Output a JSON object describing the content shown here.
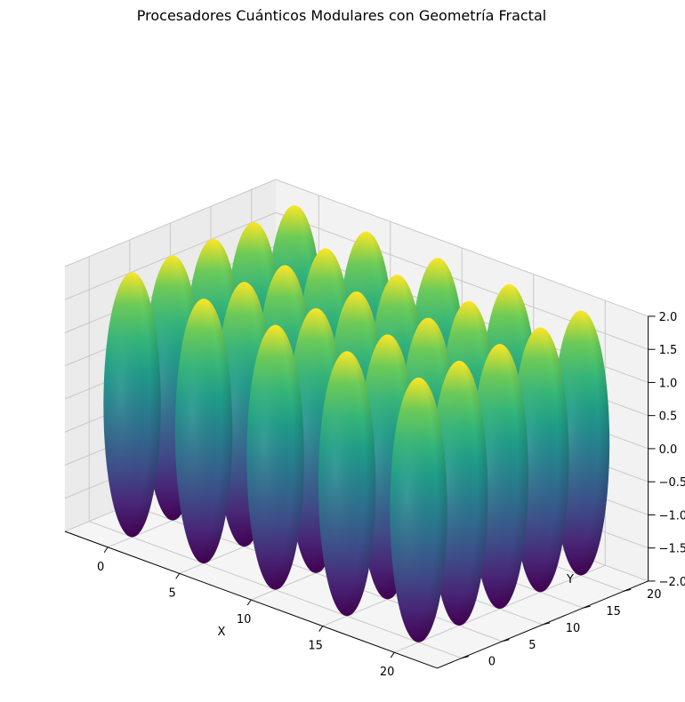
{
  "chart_data": {
    "type": "surface3d",
    "title": "Procesadores Cuánticos Modulares con Geometría Fractal",
    "xlabel": "X",
    "ylabel": "Y",
    "zlabel": "",
    "colormap": "viridis",
    "colors": {
      "low": "#440154",
      "mid": "#21918c",
      "high": "#fde725",
      "pane": "#f2f2f2",
      "grid": "#c8c8c8"
    },
    "xlim": [
      -3,
      23
    ],
    "ylim": [
      -3,
      23
    ],
    "zlim": [
      -2,
      2
    ],
    "x_ticks": [
      "0",
      "5",
      "10",
      "15",
      "20"
    ],
    "x_tick_values": [
      0,
      5,
      10,
      15,
      20
    ],
    "y_ticks": [
      "0",
      "5",
      "10",
      "15",
      "20"
    ],
    "y_tick_values": [
      0,
      5,
      10,
      15,
      20
    ],
    "z_ticks": [
      "−2.0",
      "−1.5",
      "−1.0",
      "−0.5",
      "0.0",
      "0.5",
      "1.0",
      "1.5",
      "2.0"
    ],
    "z_tick_values": [
      -2.0,
      -1.5,
      -1.0,
      -0.5,
      0.0,
      0.5,
      1.0,
      1.5,
      2.0
    ],
    "modules": {
      "shape": "ellipsoid",
      "grid_x_centers": [
        0,
        5,
        10,
        15,
        20
      ],
      "grid_y_centers": [
        0,
        5,
        10,
        15,
        20
      ],
      "z_center": 0,
      "radius_xy": 2,
      "radius_z": 2
    }
  }
}
